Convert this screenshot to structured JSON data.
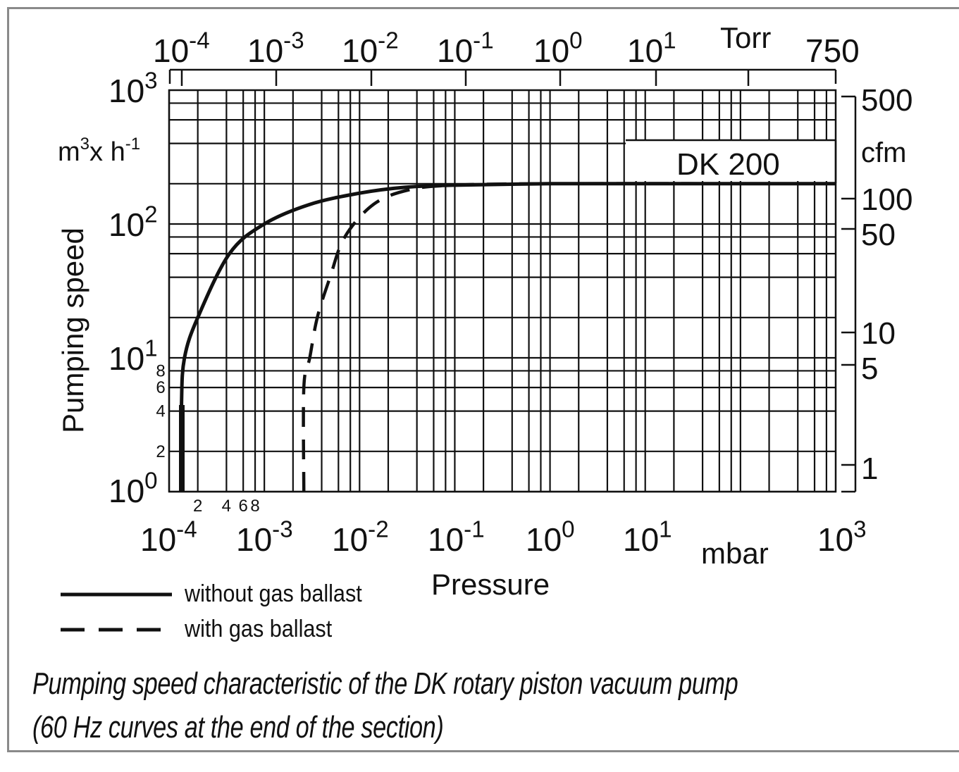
{
  "chart_data": {
    "type": "line",
    "title": "DK 200",
    "xlabel": "Pressure",
    "x_unit": "mbar",
    "x_scale": "log",
    "xlim": [
      0.0001,
      1000
    ],
    "x_ticks": [
      "10^-4",
      "10^-3",
      "10^-2",
      "10^-1",
      "10^0",
      "10^1",
      "10^3"
    ],
    "x_minor_tick_labels": [
      "2",
      "4",
      "6",
      "8"
    ],
    "x_top_unit": "Torr",
    "x_top_ticks": [
      "10^-4",
      "10^-3",
      "10^-2",
      "10^-1",
      "10^0",
      "10^1",
      "750"
    ],
    "ylabel": "Pumping speed",
    "y_unit": "m3 x h-1",
    "y_scale": "log",
    "ylim": [
      1,
      1000
    ],
    "y_ticks": [
      "10^0",
      "10^1",
      "10^2",
      "10^3"
    ],
    "y_minor_tick_labels": [
      "2",
      "4",
      "6",
      "8"
    ],
    "y_right_unit": "cfm",
    "y_right_ticks": [
      "1",
      "5",
      "10",
      "50",
      "100",
      "500"
    ],
    "grid": true,
    "legend_position": "bottom-left",
    "series": [
      {
        "name": "without gas ballast",
        "style": "solid",
        "x": [
          0.000135,
          0.000135,
          0.000145,
          0.0002,
          0.00043,
          0.001,
          0.003,
          0.01,
          0.03,
          0.1,
          1,
          10,
          100,
          1000
        ],
        "y": [
          1,
          4.5,
          10,
          20,
          60,
          100,
          140,
          170,
          188,
          195,
          200,
          200,
          200,
          200
        ]
      },
      {
        "name": "with gas ballast",
        "style": "dashed",
        "x": [
          0.0026,
          0.0026,
          0.003,
          0.0036,
          0.0049,
          0.007,
          0.014,
          0.033,
          0.1,
          1,
          1000
        ],
        "y": [
          1,
          6,
          10,
          20,
          40,
          80,
          140,
          180,
          195,
          200,
          200
        ]
      }
    ]
  },
  "labels": {
    "top_axis": {
      "ticks": [
        {
          "base": "10",
          "exp": "-4"
        },
        {
          "base": "10",
          "exp": "-3"
        },
        {
          "base": "10",
          "exp": "-2"
        },
        {
          "base": "10",
          "exp": "-1"
        },
        {
          "base": "10",
          "exp": "0"
        },
        {
          "base": "10",
          "exp": "1"
        }
      ],
      "unit": "Torr",
      "end": "750"
    },
    "bottom_axis": {
      "ticks": [
        {
          "base": "10",
          "exp": "-4"
        },
        {
          "base": "10",
          "exp": "-3"
        },
        {
          "base": "10",
          "exp": "-2"
        },
        {
          "base": "10",
          "exp": "-1"
        },
        {
          "base": "10",
          "exp": "0"
        },
        {
          "base": "10",
          "exp": "1"
        },
        {
          "base": "10",
          "exp": "3"
        }
      ],
      "minor": [
        "2",
        "4",
        "6",
        "8"
      ],
      "unit": "mbar",
      "title": "Pressure"
    },
    "left_axis": {
      "ticks": [
        {
          "base": "10",
          "exp": "3"
        },
        {
          "base": "10",
          "exp": "2"
        },
        {
          "base": "10",
          "exp": "1"
        },
        {
          "base": "10",
          "exp": "0"
        }
      ],
      "minor": [
        "8",
        "6",
        "4",
        "2"
      ],
      "unit_main": "m",
      "unit_sup1": "3",
      "unit_mid": "x h",
      "unit_sup2": "-1",
      "title": "Pumping speed"
    },
    "right_axis": {
      "ticks": [
        "500",
        "100",
        "50",
        "10",
        "5",
        "1"
      ],
      "unit": "cfm"
    },
    "model": "DK 200",
    "legend": {
      "solid": "without gas ballast",
      "dashed": "with gas ballast"
    },
    "caption_line1": "Pumping speed characteristic of the DK rotary piston vacuum pump",
    "caption_line2": "(60 Hz curves at the end of the section)"
  }
}
